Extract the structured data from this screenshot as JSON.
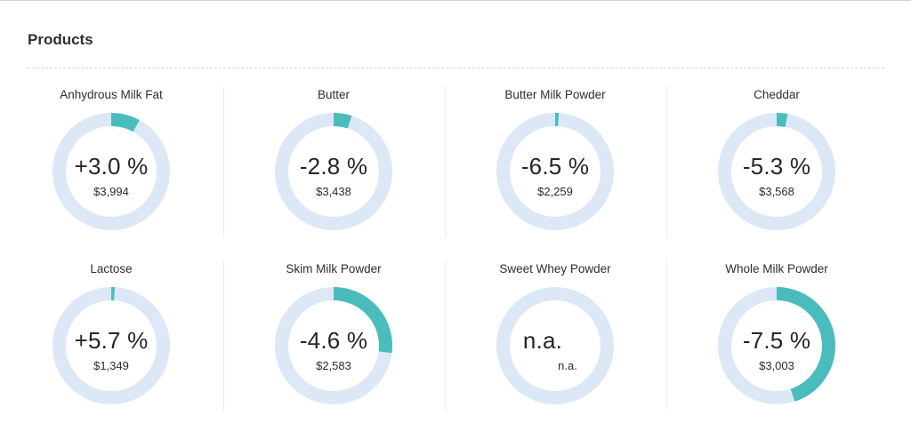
{
  "panel": {
    "title": "Products"
  },
  "colors": {
    "ring_track": "#dce8f6",
    "ring_fill": "#4bbcbc",
    "text": "#262626"
  },
  "products": [
    {
      "name": "Anhydrous Milk Fat",
      "change": "+3.0 %",
      "price": "$3,994",
      "ring_fill": 0.08
    },
    {
      "name": "Butter",
      "change": "-2.8 %",
      "price": "$3,438",
      "ring_fill": 0.05
    },
    {
      "name": "Butter Milk Powder",
      "change": "-6.5 %",
      "price": "$2,259",
      "ring_fill": 0.01
    },
    {
      "name": "Cheddar",
      "change": "-5.3 %",
      "price": "$3,568",
      "ring_fill": 0.03
    },
    {
      "name": "Lactose",
      "change": "+5.7 %",
      "price": "$1,349",
      "ring_fill": 0.01
    },
    {
      "name": "Skim Milk Powder",
      "change": "-4.6 %",
      "price": "$2,583",
      "ring_fill": 0.27
    },
    {
      "name": "Sweet Whey Powder",
      "change": "n.a.",
      "price": "n.a.",
      "ring_fill": 0
    },
    {
      "name": "Whole Milk Powder",
      "change": "-7.5 %",
      "price": "$3,003",
      "ring_fill": 0.45
    }
  ]
}
